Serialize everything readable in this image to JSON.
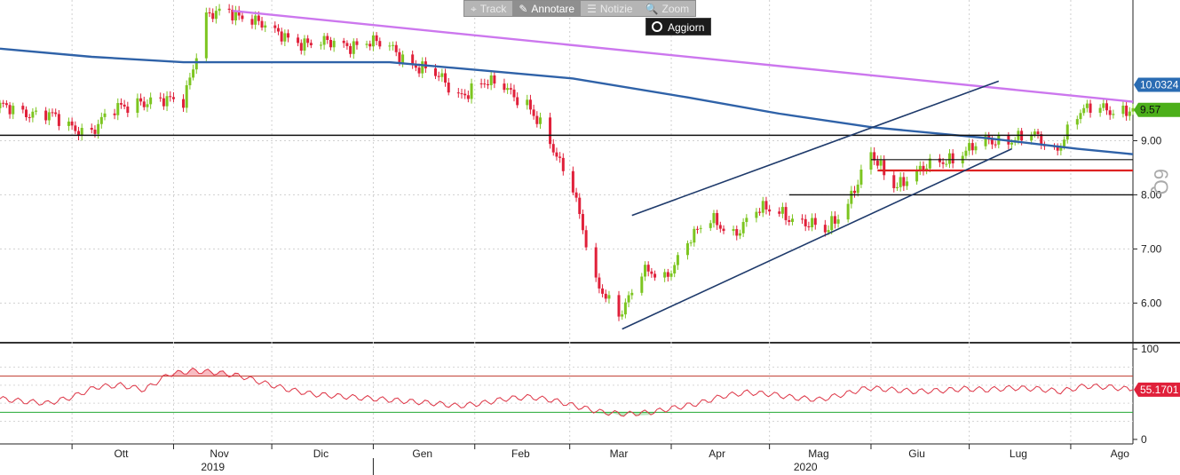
{
  "toolbar": {
    "items": [
      {
        "label": "Track",
        "icon": "crosshair-icon",
        "glyph": "⌖"
      },
      {
        "label": "Annotare",
        "icon": "pencil-icon",
        "glyph": "✎"
      },
      {
        "label": "Notizie",
        "icon": "news-icon",
        "glyph": "☰"
      },
      {
        "label": "Zoom",
        "icon": "magnifier-icon",
        "glyph": "🔍"
      }
    ],
    "active_index": 1
  },
  "refresh_label": "Aggiorn",
  "side_glyph": "6Q",
  "chart_data": [
    {
      "type": "candlestick",
      "ylim": [
        5.3,
        11.6
      ],
      "y_ticks": [
        6.0,
        7.0,
        8.0,
        9.0
      ],
      "y_tick_labels": [
        "6.00",
        "7.00",
        "8.00",
        "9.00"
      ],
      "price_tags": [
        {
          "label": "10.0324",
          "value": 10.0324,
          "color": "#2a6cb3"
        },
        {
          "label": "9.57",
          "value": 9.57,
          "color": "#4caf1a"
        }
      ],
      "up_color": "#7cc520",
      "down_color": "#e0203a",
      "ma_color": "#2f62a8",
      "trendline_color": "#cc77ee",
      "month_labels": [
        "Ott",
        "Nov",
        "Dic",
        "Gen",
        "Feb",
        "Mar",
        "Apr",
        "Mag",
        "Giu",
        "Lug",
        "Ago"
      ],
      "year_labels": [
        "2019",
        "2020"
      ],
      "close_path": [
        [
          "2019-09-09",
          9.6
        ],
        [
          "2019-09-16",
          9.55
        ],
        [
          "2019-09-23",
          9.5
        ],
        [
          "2019-09-30",
          9.25
        ],
        [
          "2019-10-07",
          9.2
        ],
        [
          "2019-10-14",
          9.55
        ],
        [
          "2019-10-21",
          9.75
        ],
        [
          "2019-10-28",
          9.7
        ],
        [
          "2019-11-04",
          9.75
        ],
        [
          "2019-11-11",
          11.3
        ],
        [
          "2019-11-18",
          11.35
        ],
        [
          "2019-11-25",
          11.3
        ],
        [
          "2019-12-02",
          10.95
        ],
        [
          "2019-12-09",
          10.85
        ],
        [
          "2019-12-16",
          10.8
        ],
        [
          "2019-12-23",
          10.75
        ],
        [
          "2019-12-30",
          10.85
        ],
        [
          "2020-01-06",
          10.7
        ],
        [
          "2020-01-13",
          10.45
        ],
        [
          "2020-01-20",
          10.2
        ],
        [
          "2020-01-27",
          9.85
        ],
        [
          "2020-02-03",
          10.05
        ],
        [
          "2020-02-10",
          10.0
        ],
        [
          "2020-02-17",
          9.7
        ],
        [
          "2020-02-24",
          8.9
        ],
        [
          "2020-03-02",
          8.2
        ],
        [
          "2020-03-09",
          6.3
        ],
        [
          "2020-03-16",
          5.8
        ],
        [
          "2020-03-23",
          6.6
        ],
        [
          "2020-03-30",
          6.4
        ],
        [
          "2020-04-06",
          7.2
        ],
        [
          "2020-04-13",
          7.5
        ],
        [
          "2020-04-20",
          7.3
        ],
        [
          "2020-04-27",
          7.7
        ],
        [
          "2020-05-04",
          7.7
        ],
        [
          "2020-05-11",
          7.5
        ],
        [
          "2020-05-18",
          7.3
        ],
        [
          "2020-05-25",
          7.9
        ],
        [
          "2020-06-01",
          8.7
        ],
        [
          "2020-06-08",
          8.2
        ],
        [
          "2020-06-15",
          8.4
        ],
        [
          "2020-06-22",
          8.6
        ],
        [
          "2020-06-29",
          8.8
        ],
        [
          "2020-07-06",
          8.95
        ],
        [
          "2020-07-13",
          9.05
        ],
        [
          "2020-07-20",
          9.1
        ],
        [
          "2020-07-27",
          8.8
        ],
        [
          "2020-08-03",
          9.5
        ],
        [
          "2020-08-10",
          9.6
        ],
        [
          "2020-08-17",
          9.57
        ]
      ],
      "moving_average": [
        [
          "2019-09-09",
          10.7
        ],
        [
          "2019-10-07",
          10.55
        ],
        [
          "2019-11-04",
          10.45
        ],
        [
          "2019-12-02",
          10.45
        ],
        [
          "2020-01-06",
          10.45
        ],
        [
          "2020-02-03",
          10.3
        ],
        [
          "2020-03-02",
          10.15
        ],
        [
          "2020-04-06",
          9.8
        ],
        [
          "2020-05-04",
          9.5
        ],
        [
          "2020-06-01",
          9.25
        ],
        [
          "2020-07-06",
          9.05
        ],
        [
          "2020-08-03",
          8.85
        ],
        [
          "2020-08-20",
          8.75
        ]
      ],
      "horizontal_lines": [
        {
          "value": 9.1,
          "from": "2019-09-09",
          "to": "2020-08-20",
          "color": "#111111",
          "width": 1.4
        },
        {
          "value": 8.45,
          "from": "2020-06-03",
          "to": "2020-08-20",
          "color": "#dd2222",
          "width": 2.2
        },
        {
          "value": 8.65,
          "from": "2020-06-01",
          "to": "2020-08-20",
          "color": "#111111",
          "width": 1.2
        },
        {
          "value": 8.0,
          "from": "2020-05-07",
          "to": "2020-08-20",
          "color": "#111111",
          "width": 1.4
        }
      ],
      "trend_lines": [
        {
          "from": [
            "2019-11-19",
            11.4
          ],
          "to": [
            "2020-08-20",
            9.72
          ],
          "color": "#cc77ee",
          "width": 2.4
        },
        {
          "from": [
            "2020-03-20",
            7.62
          ],
          "to": [
            "2020-07-10",
            10.1
          ],
          "color": "#1e3a6b",
          "width": 1.6
        },
        {
          "from": [
            "2020-03-17",
            5.52
          ],
          "to": [
            "2020-07-14",
            8.85
          ],
          "color": "#1e3a6b",
          "width": 1.6
        }
      ]
    },
    {
      "type": "line",
      "series": [
        {
          "values": [
            45,
            42,
            40,
            47,
            58,
            60,
            55,
            72,
            76,
            74,
            70,
            62,
            55,
            50,
            48,
            46,
            44,
            42,
            40,
            37,
            40,
            45,
            47,
            43,
            36,
            30,
            28,
            30,
            35,
            40,
            48,
            52,
            50,
            46,
            44,
            50,
            57,
            55,
            53,
            54,
            56,
            55,
            57,
            56,
            53,
            59,
            58,
            55
          ]
        }
      ],
      "ylim": [
        -5,
        105
      ],
      "y_ticks": [
        0,
        100
      ],
      "y_tick_labels": [
        "0",
        "100"
      ],
      "reference_lines": [
        {
          "value": 70,
          "color": "#c0392b"
        },
        {
          "value": 30,
          "color": "#22aa33"
        }
      ],
      "last_value_label": "55.1701",
      "line_color": "#dd3344"
    }
  ]
}
